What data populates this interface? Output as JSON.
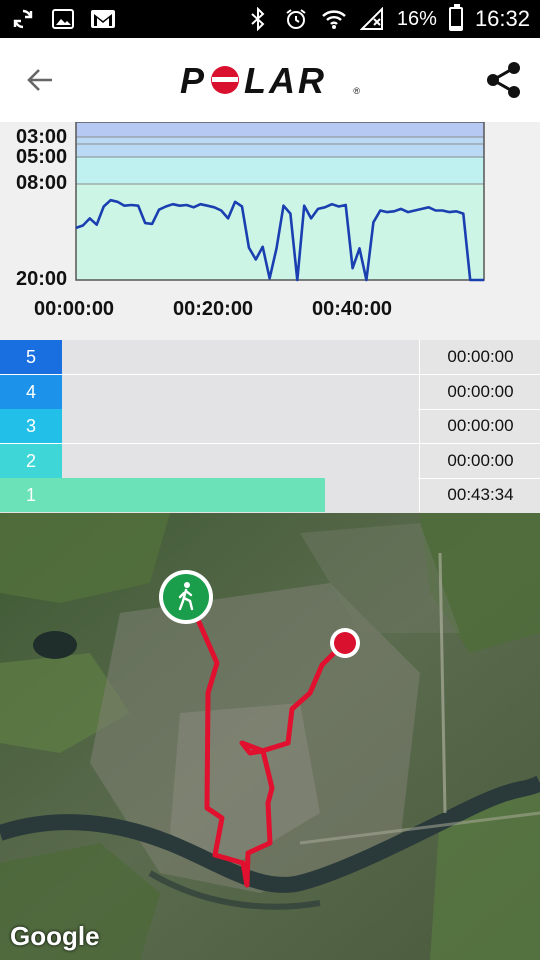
{
  "status_bar": {
    "icons_left": [
      "sync-icon",
      "image-icon",
      "gmail-icon"
    ],
    "icons_right": [
      "bluetooth-icon",
      "alarm-icon",
      "wifi-icon",
      "no-signal-icon"
    ],
    "battery_percent": "16%",
    "battery_level": 0.16,
    "time": "16:32"
  },
  "app_bar": {
    "logo_text": "POLAR",
    "logo_mark": "®",
    "back_icon": "arrow-back-icon",
    "share_icon": "share-icon"
  },
  "chart_data": {
    "type": "line",
    "y_tick_labels": [
      "03:00",
      "05:00",
      "08:00",
      "20:00"
    ],
    "x_tick_labels": [
      "00:00:00",
      "00:20:00",
      "00:40:00"
    ],
    "x": [
      0,
      1,
      2,
      3,
      4,
      5,
      6,
      7,
      8,
      9,
      10,
      11,
      12,
      13,
      14,
      15,
      16,
      17,
      18,
      19,
      20,
      21,
      22,
      23,
      24,
      25,
      26,
      27,
      28,
      29,
      30,
      31,
      32,
      33,
      34,
      35,
      36,
      37,
      38,
      39,
      40,
      41,
      42,
      43,
      44,
      45,
      46,
      47,
      48,
      49,
      50,
      51,
      52,
      53,
      54,
      55,
      56,
      57,
      58,
      59
    ],
    "series": [
      {
        "values": [
          13.4,
          13.1,
          12.2,
          13.0,
          10.7,
          9.9,
          10.1,
          10.6,
          10.5,
          10.6,
          12.8,
          12.9,
          11.1,
          10.7,
          10.4,
          10.6,
          10.5,
          10.8,
          10.4,
          10.6,
          10.8,
          11.2,
          12.2,
          10.1,
          10.7,
          15.9,
          17.4,
          15.8,
          19.8,
          16.0,
          10.6,
          11.6,
          20.0,
          10.6,
          12.2,
          11.0,
          10.8,
          10.4,
          10.7,
          10.5,
          18.5,
          16.0,
          20.0,
          12.7,
          11.2,
          11.4,
          11.3,
          11.0,
          11.4,
          11.2,
          11.0,
          10.8,
          11.2,
          11.2,
          11.4,
          11.3,
          11.6,
          20.0,
          20.0,
          20.0
        ],
        "color": "#1a3fb0"
      }
    ],
    "zone_bands": [
      "#b6c9f2",
      "#b9d9f5",
      "#bff1f1",
      "#cdf5e6"
    ]
  },
  "zones": [
    {
      "label": "5",
      "color": "#1a6fe0",
      "time": "00:00:00",
      "fill": 0
    },
    {
      "label": "4",
      "color": "#1d92ea",
      "time": "00:00:00",
      "fill": 0
    },
    {
      "label": "3",
      "color": "#22c0e8",
      "time": "00:00:00",
      "fill": 0
    },
    {
      "label": "2",
      "color": "#3ed6d6",
      "time": "00:00:00",
      "fill": 0
    },
    {
      "label": "1",
      "color": "#6be2b8",
      "time": "00:43:34",
      "fill": 0.74
    }
  ],
  "map": {
    "attribution": "Google",
    "start_marker_icon": "walking-person-icon",
    "end_marker": "end-point-marker",
    "route_color": "#e0102e"
  }
}
